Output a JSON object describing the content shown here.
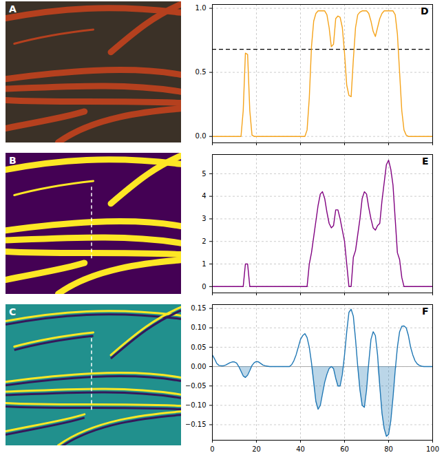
{
  "chart_data": [
    {
      "type": "image",
      "title": "A",
      "color": "#b5401e"
    },
    {
      "type": "image",
      "title": "B",
      "color": "#fde725"
    },
    {
      "type": "image",
      "title": "C",
      "color": "#fde725"
    },
    {
      "type": "line",
      "title": "D",
      "color": "#f5a31a",
      "grid": true,
      "tick_labels": "y",
      "xlim": [
        0,
        100
      ],
      "xticks": [
        0,
        20,
        40,
        60,
        80,
        100
      ],
      "ylim": [
        -0.05,
        1.03
      ],
      "yticks": [
        {
          "value": 0,
          "label": "0.0"
        },
        {
          "value": 0.5,
          "label": "0.5"
        },
        {
          "value": 1,
          "label": "1.0"
        }
      ],
      "threshold": 0.68,
      "x": [
        0,
        1,
        2,
        3,
        4,
        5,
        6,
        7,
        8,
        9,
        10,
        11,
        12,
        13,
        14,
        15,
        16,
        17,
        18,
        19,
        20,
        21,
        22,
        23,
        24,
        25,
        26,
        27,
        28,
        29,
        30,
        31,
        32,
        33,
        34,
        35,
        36,
        37,
        38,
        39,
        40,
        41,
        42,
        43,
        44,
        45,
        46,
        47,
        48,
        49,
        50,
        51,
        52,
        53,
        54,
        55,
        56,
        57,
        58,
        59,
        60,
        61,
        62,
        63,
        64,
        65,
        66,
        67,
        68,
        69,
        70,
        71,
        72,
        73,
        74,
        75,
        76,
        77,
        78,
        79,
        80,
        81,
        82,
        83,
        84,
        85,
        86,
        87,
        88,
        89,
        90,
        91,
        92,
        93,
        94,
        95,
        96,
        97,
        98,
        99,
        100
      ],
      "values": [
        0,
        0,
        0,
        0,
        0,
        0,
        0,
        0,
        0,
        0,
        0,
        0,
        0,
        0,
        0.2,
        0.65,
        0.64,
        0.2,
        0.01,
        0,
        0,
        0,
        0,
        0,
        0,
        0,
        0,
        0,
        0,
        0,
        0,
        0,
        0,
        0,
        0,
        0,
        0,
        0,
        0,
        0,
        0,
        0,
        0,
        0.05,
        0.3,
        0.7,
        0.9,
        0.96,
        0.98,
        0.98,
        0.98,
        0.98,
        0.95,
        0.85,
        0.7,
        0.72,
        0.92,
        0.94,
        0.93,
        0.85,
        0.65,
        0.4,
        0.32,
        0.31,
        0.6,
        0.85,
        0.95,
        0.97,
        0.98,
        0.98,
        0.98,
        0.96,
        0.9,
        0.82,
        0.78,
        0.85,
        0.92,
        0.96,
        0.98,
        0.98,
        0.98,
        0.98,
        0.98,
        0.95,
        0.8,
        0.5,
        0.2,
        0.05,
        0.01,
        0,
        0,
        0,
        0,
        0,
        0,
        0,
        0,
        0,
        0,
        0,
        0
      ]
    },
    {
      "type": "line",
      "title": "E",
      "color": "#800080",
      "grid": true,
      "tick_labels": "y",
      "xlim": [
        0,
        100
      ],
      "xticks": [
        0,
        20,
        40,
        60,
        80,
        100
      ],
      "ylim": [
        -0.28,
        5.85
      ],
      "yticks": [
        0,
        1,
        2,
        3,
        4,
        5
      ],
      "x": [
        0,
        1,
        2,
        3,
        4,
        5,
        6,
        7,
        8,
        9,
        10,
        11,
        12,
        13,
        14,
        15,
        16,
        17,
        18,
        19,
        20,
        21,
        22,
        23,
        24,
        25,
        26,
        27,
        28,
        29,
        30,
        31,
        32,
        33,
        34,
        35,
        36,
        37,
        38,
        39,
        40,
        41,
        42,
        43,
        44,
        45,
        46,
        47,
        48,
        49,
        50,
        51,
        52,
        53,
        54,
        55,
        56,
        57,
        58,
        59,
        60,
        61,
        62,
        63,
        64,
        65,
        66,
        67,
        68,
        69,
        70,
        71,
        72,
        73,
        74,
        75,
        76,
        77,
        78,
        79,
        80,
        81,
        82,
        83,
        84,
        85,
        86,
        87,
        88,
        89,
        90,
        91,
        92,
        93,
        94,
        95,
        96,
        97,
        98,
        99,
        100
      ],
      "values": [
        0,
        0,
        0,
        0,
        0,
        0,
        0,
        0,
        0,
        0,
        0,
        0,
        0,
        0,
        0,
        1.0,
        1.0,
        0,
        0,
        0,
        0,
        0,
        0,
        0,
        0,
        0,
        0,
        0,
        0,
        0,
        0,
        0,
        0,
        0,
        0,
        0,
        0,
        0,
        0,
        0,
        0,
        0,
        0,
        0,
        1.0,
        1.5,
        2.2,
        2.9,
        3.6,
        4.1,
        4.2,
        3.9,
        3.3,
        2.8,
        2.6,
        2.7,
        3.4,
        3.4,
        3.0,
        2.5,
        2.0,
        1.0,
        0,
        0,
        1.3,
        1.6,
        2.3,
        3.0,
        3.9,
        4.2,
        4.1,
        3.5,
        3.0,
        2.6,
        2.5,
        2.7,
        2.8,
        3.8,
        4.6,
        5.4,
        5.6,
        5.2,
        4.5,
        3.0,
        1.5,
        1.2,
        0.4,
        0,
        0,
        0,
        0,
        0,
        0,
        0,
        0,
        0,
        0,
        0,
        0,
        0,
        0
      ]
    },
    {
      "type": "area",
      "title": "F",
      "color": "#1f77b4",
      "grid": true,
      "xlim": [
        0,
        100
      ],
      "xticks": [
        0,
        20,
        40,
        60,
        80,
        100
      ],
      "ylim": [
        -0.19,
        0.16
      ],
      "yticks": [
        {
          "value": -0.15,
          "label": "−0.15"
        },
        {
          "value": -0.1,
          "label": "−0.10"
        },
        {
          "value": -0.05,
          "label": "−0.05"
        },
        {
          "value": 0,
          "label": "0.00"
        },
        {
          "value": 0.05,
          "label": "0.05"
        },
        {
          "value": 0.1,
          "label": "0.10"
        },
        {
          "value": 0.15,
          "label": "0.15"
        }
      ],
      "x": [
        0,
        1,
        2,
        3,
        4,
        5,
        6,
        7,
        8,
        9,
        10,
        11,
        12,
        13,
        14,
        15,
        16,
        17,
        18,
        19,
        20,
        21,
        22,
        23,
        24,
        25,
        26,
        27,
        28,
        29,
        30,
        31,
        32,
        33,
        34,
        35,
        36,
        37,
        38,
        39,
        40,
        41,
        42,
        43,
        44,
        45,
        46,
        47,
        48,
        49,
        50,
        51,
        52,
        53,
        54,
        55,
        56,
        57,
        58,
        59,
        60,
        61,
        62,
        63,
        64,
        65,
        66,
        67,
        68,
        69,
        70,
        71,
        72,
        73,
        74,
        75,
        76,
        77,
        78,
        79,
        80,
        81,
        82,
        83,
        84,
        85,
        86,
        87,
        88,
        89,
        90,
        91,
        92,
        93,
        94,
        95,
        96,
        97,
        98,
        99,
        100
      ],
      "values": [
        0.03,
        0.02,
        0.008,
        0.003,
        0.002,
        0.002,
        0.004,
        0.007,
        0.01,
        0.012,
        0.012,
        0.009,
        0,
        -0.012,
        -0.024,
        -0.028,
        -0.022,
        -0.01,
        0.003,
        0.01,
        0.013,
        0.012,
        0.008,
        0.004,
        0.002,
        0.001,
        0,
        0,
        0,
        0,
        0,
        0,
        0,
        0,
        0,
        0,
        0.005,
        0.015,
        0.03,
        0.05,
        0.07,
        0.08,
        0.085,
        0.075,
        0.05,
        0.01,
        -0.04,
        -0.09,
        -0.11,
        -0.1,
        -0.07,
        -0.04,
        -0.02,
        -0.005,
        0,
        -0.005,
        -0.03,
        -0.05,
        -0.05,
        -0.02,
        0.03,
        0.09,
        0.14,
        0.148,
        0.13,
        0.07,
        0,
        -0.06,
        -0.1,
        -0.105,
        -0.06,
        0.01,
        0.07,
        0.09,
        0.08,
        0.03,
        -0.05,
        -0.12,
        -0.16,
        -0.18,
        -0.175,
        -0.14,
        -0.08,
        -0.01,
        0.05,
        0.09,
        0.104,
        0.105,
        0.1,
        0.08,
        0.05,
        0.03,
        0.015,
        0.007,
        0.003,
        0.001,
        0,
        0,
        0,
        0,
        0
      ]
    }
  ]
}
